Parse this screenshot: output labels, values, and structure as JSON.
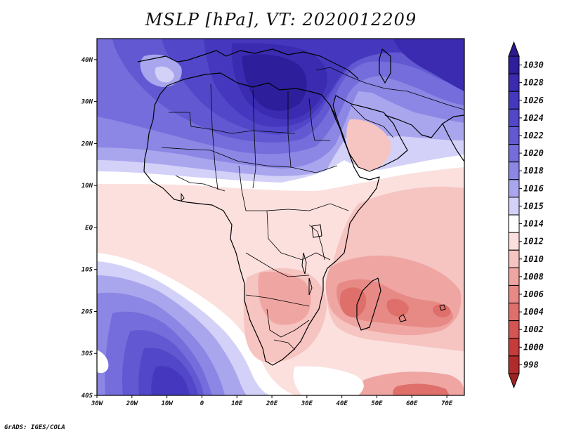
{
  "title": "MSLP [hPa], VT: 2020012209",
  "credit": "GrADS: IGES/COLA",
  "lat_ticks": [
    {
      "lat": 40,
      "label": "40N"
    },
    {
      "lat": 30,
      "label": "30N"
    },
    {
      "lat": 20,
      "label": "20N"
    },
    {
      "lat": 10,
      "label": "10N"
    },
    {
      "lat": 0,
      "label": "EQ"
    },
    {
      "lat": -10,
      "label": "10S"
    },
    {
      "lat": -20,
      "label": "20S"
    },
    {
      "lat": -30,
      "label": "30S"
    },
    {
      "lat": -40,
      "label": "40S"
    }
  ],
  "lon_ticks": [
    {
      "lon": -30,
      "label": "30W"
    },
    {
      "lon": -20,
      "label": "20W"
    },
    {
      "lon": -10,
      "label": "10W"
    },
    {
      "lon": 0,
      "label": "0"
    },
    {
      "lon": 10,
      "label": "10E"
    },
    {
      "lon": 20,
      "label": "20E"
    },
    {
      "lon": 30,
      "label": "30E"
    },
    {
      "lon": 40,
      "label": "40E"
    },
    {
      "lon": 50,
      "label": "50E"
    },
    {
      "lon": 60,
      "label": "60E"
    },
    {
      "lon": 70,
      "label": "70E"
    }
  ],
  "domain": {
    "lon_min": -30,
    "lon_max": 75,
    "lat_min": -40,
    "lat_max": 45
  },
  "colorbar": {
    "levels": [
      {
        "label": "1030",
        "color": "#2d1e9c"
      },
      {
        "label": "1028",
        "color": "#3a2bb0"
      },
      {
        "label": "1026",
        "color": "#4538bf"
      },
      {
        "label": "1024",
        "color": "#5247c9"
      },
      {
        "label": "1022",
        "color": "#6259d2"
      },
      {
        "label": "1020",
        "color": "#756ddb"
      },
      {
        "label": "1018",
        "color": "#8c86e4"
      },
      {
        "label": "1016",
        "color": "#aaa6ee"
      },
      {
        "label": "1015",
        "color": "#d3d1f8"
      },
      {
        "label": "1014",
        "color": "#ffffff"
      },
      {
        "label": "1012",
        "color": "#fbe0de"
      },
      {
        "label": "1010",
        "color": "#f6c4c1"
      },
      {
        "label": "1008",
        "color": "#efa6a3"
      },
      {
        "label": "1006",
        "color": "#e78a86"
      },
      {
        "label": "1004",
        "color": "#df6f6b"
      },
      {
        "label": "1002",
        "color": "#d55552"
      },
      {
        "label": "1000",
        "color": "#c63c3b"
      },
      {
        "label": "998",
        "color": "#b22b2b"
      }
    ],
    "top_color": "#2a1a8c",
    "bottom_color": "#9e2222"
  }
}
